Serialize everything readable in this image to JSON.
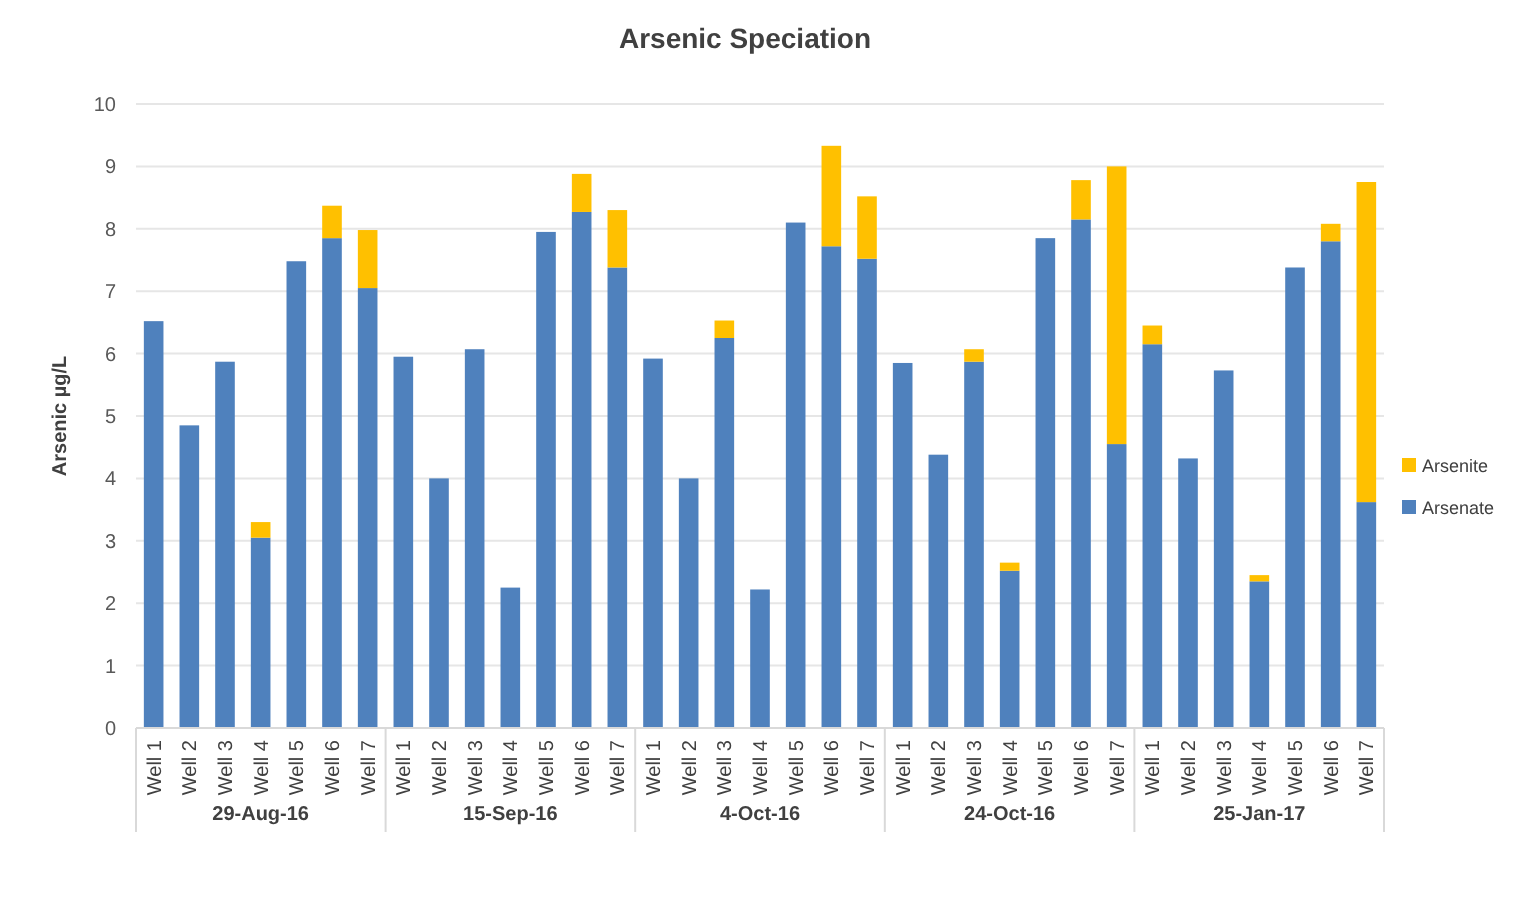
{
  "chart_data": {
    "type": "bar",
    "title": "Arsenic Speciation",
    "ylabel": "Arsenic µg/L",
    "categories": [
      "Well 1",
      "Well 2",
      "Well 3",
      "Well 4",
      "Well 5",
      "Well 6",
      "Well 7",
      "Well 1",
      "Well 2",
      "Well 3",
      "Well 4",
      "Well 5",
      "Well 6",
      "Well 7",
      "Well 1",
      "Well 2",
      "Well 3",
      "Well 4",
      "Well 5",
      "Well 6",
      "Well 7",
      "Well 1",
      "Well 2",
      "Well 3",
      "Well 4",
      "Well 5",
      "Well 6",
      "Well 7",
      "Well 1",
      "Well 2",
      "Well 3",
      "Well 4",
      "Well 5",
      "Well 6",
      "Well 7"
    ],
    "annotations": [
      "29-Aug-16",
      "15-Sep-16",
      "4-Oct-16",
      "24-Oct-16",
      "25-Jan-17"
    ],
    "stacked": true,
    "series": [
      {
        "name": "Arsenate",
        "color": "#4f81bd",
        "values": [
          6.52,
          4.85,
          5.87,
          3.05,
          7.48,
          7.85,
          7.05,
          5.95,
          4.0,
          6.07,
          2.25,
          7.95,
          8.27,
          7.38,
          5.92,
          4.0,
          6.25,
          2.22,
          8.1,
          7.72,
          7.52,
          5.85,
          4.38,
          5.87,
          2.52,
          7.85,
          8.15,
          4.55,
          6.15,
          4.32,
          5.73,
          2.35,
          7.38,
          7.8,
          3.62
        ]
      },
      {
        "name": "Arsenite",
        "color": "#ffc000",
        "values": [
          0,
          0,
          0,
          0.25,
          0,
          0.52,
          0.93,
          0,
          0,
          0,
          0,
          0,
          0.61,
          0.92,
          0,
          0,
          0.28,
          0,
          0,
          1.61,
          1.0,
          0,
          0,
          0.2,
          0.13,
          0,
          0.63,
          4.45,
          0.3,
          0,
          0,
          0.1,
          0,
          0.28,
          5.13
        ]
      }
    ],
    "ylim": [
      0,
      10
    ],
    "yticks": [
      0,
      1,
      2,
      3,
      4,
      5,
      6,
      7,
      8,
      9,
      10
    ],
    "grid": "y",
    "legend": "right"
  }
}
